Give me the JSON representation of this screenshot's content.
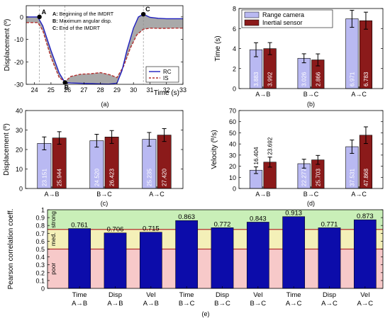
{
  "colors": {
    "rc": "#b9b9f2",
    "is": "#8b1a1a",
    "rc_line": "#1f1fbf",
    "is_line": "#b23030",
    "bar_e": "#0c0caa",
    "band_strong": "#c9efb8",
    "band_med": "#f4f0b8",
    "band_poor": "#f7c9c9",
    "threshold_line": "#b23030"
  },
  "chart_data": [
    {
      "id": "a",
      "type": "line",
      "panel_label": "(a)",
      "xlabel": "Time (s)",
      "ylabel": "Displacement (º)",
      "xlim": [
        23.5,
        33
      ],
      "ylim": [
        -30,
        5
      ],
      "xticks": [
        "24",
        "25",
        "26",
        "27",
        "28",
        "29",
        "30",
        "31",
        "32",
        "33"
      ],
      "yticks": [
        "-30",
        "-20",
        "-10",
        "0"
      ],
      "legend_placement": "bottom-right",
      "notes": [
        "A: Beginning of the IMDRT",
        "B: Maximum angular disp.",
        "C: End of the IMDRT"
      ],
      "markers": [
        {
          "label": "A",
          "x": 24.3,
          "y": 0
        },
        {
          "label": "B",
          "x": 25.85,
          "y": -29.2
        },
        {
          "label": "C",
          "x": 30.6,
          "y": 1.2
        }
      ],
      "series": [
        {
          "name": "RC",
          "x": [
            23.5,
            24.2,
            24.5,
            25.0,
            25.5,
            25.85,
            26.2,
            27.0,
            27.5,
            28.0,
            28.5,
            29.0,
            29.3,
            29.6,
            30.0,
            30.3,
            30.6,
            31.0,
            31.5,
            32.0,
            32.5,
            33.0
          ],
          "y": [
            0,
            0,
            -4,
            -15,
            -25,
            -29.2,
            -29.4,
            -29.6,
            -29.7,
            -29.8,
            -29.9,
            -29.5,
            -24,
            -15,
            -5,
            0,
            1.2,
            -0.2,
            -0.6,
            -0.8,
            -0.8,
            -0.8
          ]
        },
        {
          "name": "IS",
          "x": [
            23.5,
            24.2,
            24.5,
            25.0,
            25.5,
            25.85,
            26.2,
            26.8,
            27.4,
            28.0,
            28.6,
            29.0,
            29.4,
            29.8,
            30.2,
            30.6,
            31.0,
            31.5,
            32.0,
            32.5,
            33.0
          ],
          "y": [
            -2.5,
            -2.5,
            -6,
            -18,
            -27,
            -28.8,
            -26.5,
            -25.5,
            -25.3,
            -24.8,
            -25.8,
            -27,
            -22,
            -14,
            -8,
            -5.5,
            -5,
            -5.1,
            -5.1,
            -5,
            -5
          ]
        }
      ]
    },
    {
      "id": "b",
      "type": "bar",
      "panel_label": "(b)",
      "ylabel": "Time (s)",
      "ylim": [
        0,
        8
      ],
      "yticks": [
        "0",
        "2",
        "4",
        "6",
        "8"
      ],
      "categories": [
        "A→B",
        "B→C",
        "A→C"
      ],
      "legend_placement": "top-left",
      "series": [
        {
          "name": "Range camera",
          "values": [
            3.883,
            3.026,
            6.971
          ],
          "labels": [
            "3.883",
            "3.026",
            "6.971"
          ],
          "errors": [
            0.7,
            0.45,
            0.85
          ]
        },
        {
          "name": "Inertial sensor",
          "values": [
            3.992,
            2.866,
            6.783
          ],
          "labels": [
            "3.992",
            "2.866",
            "6.783"
          ],
          "errors": [
            0.6,
            0.6,
            0.85
          ]
        }
      ]
    },
    {
      "id": "c",
      "type": "bar",
      "panel_label": "(c)",
      "ylabel": "Displacement (º)",
      "ylim": [
        0,
        40
      ],
      "yticks": [
        "0",
        "10",
        "20",
        "30",
        "40"
      ],
      "categories": [
        "A→B",
        "B→C",
        "A→C"
      ],
      "series": [
        {
          "values": [
            23.151,
            24.52,
            25.235
          ],
          "labels": [
            "23.151",
            "24.520",
            "25.235"
          ],
          "errors": [
            3.3,
            3.3,
            3.5
          ]
        },
        {
          "values": [
            25.944,
            26.423,
            27.42
          ],
          "labels": [
            "25.944",
            "26.423",
            "27.420"
          ],
          "errors": [
            3.2,
            3.3,
            3.3
          ]
        }
      ]
    },
    {
      "id": "d",
      "type": "bar",
      "panel_label": "(d)",
      "ylabel": "Velocity (º/s)",
      "ylim": [
        0,
        70
      ],
      "yticks": [
        "0",
        "10",
        "20",
        "30",
        "40",
        "50",
        "60",
        "70"
      ],
      "categories": [
        "A→B",
        "B→C",
        "A→C"
      ],
      "series": [
        {
          "values": [
            16.404,
            22.277,
            37.531
          ],
          "labels": [
            "16.404",
            "22.277",
            "37.531"
          ],
          "labels_above": [
            true,
            false,
            false
          ],
          "errors": [
            3.0,
            4.0,
            6.0
          ]
        },
        {
          "values": [
            23.692,
            25.703,
            47.868
          ],
          "labels": [
            "23.692",
            "25.703",
            "47.868"
          ],
          "labels_above": [
            true,
            false,
            false
          ],
          "errors": [
            4.5,
            4.0,
            7.5
          ]
        }
      ]
    },
    {
      "id": "e",
      "type": "bar",
      "panel_label": "(e)",
      "ylabel": "Pearson correlation coeff.",
      "ylim": [
        0,
        1
      ],
      "yticks": [
        "0",
        "0.1",
        "0.2",
        "0.3",
        "0.4",
        "0.5",
        "0.6",
        "0.7",
        "0.8",
        "0.9",
        "1"
      ],
      "bands": [
        {
          "label": "strong",
          "from": 0.75,
          "to": 1.0
        },
        {
          "label": "med.",
          "from": 0.5,
          "to": 0.75
        },
        {
          "label": "poor",
          "from": 0,
          "to": 0.5
        }
      ],
      "thresholds": [
        0.5,
        0.75
      ],
      "categories": [
        {
          "line1": "Time",
          "line2": "A→B"
        },
        {
          "line1": "Disp",
          "line2": "A→B"
        },
        {
          "line1": "Vel",
          "line2": "A→B"
        },
        {
          "line1": "Time",
          "line2": "B→C"
        },
        {
          "line1": "Disp",
          "line2": "B→C"
        },
        {
          "line1": "Vel",
          "line2": "B→C"
        },
        {
          "line1": "Time",
          "line2": "A→C"
        },
        {
          "line1": "Disp",
          "line2": "A→C"
        },
        {
          "line1": "Vel",
          "line2": "A→C"
        }
      ],
      "values": [
        0.761,
        0.706,
        0.715,
        0.863,
        0.772,
        0.843,
        0.913,
        0.771,
        0.873
      ],
      "labels": [
        "0.761",
        "0.706",
        "0.715",
        "0.863",
        "0.772",
        "0.843",
        "0.913",
        "0.771",
        "0.873"
      ]
    }
  ]
}
